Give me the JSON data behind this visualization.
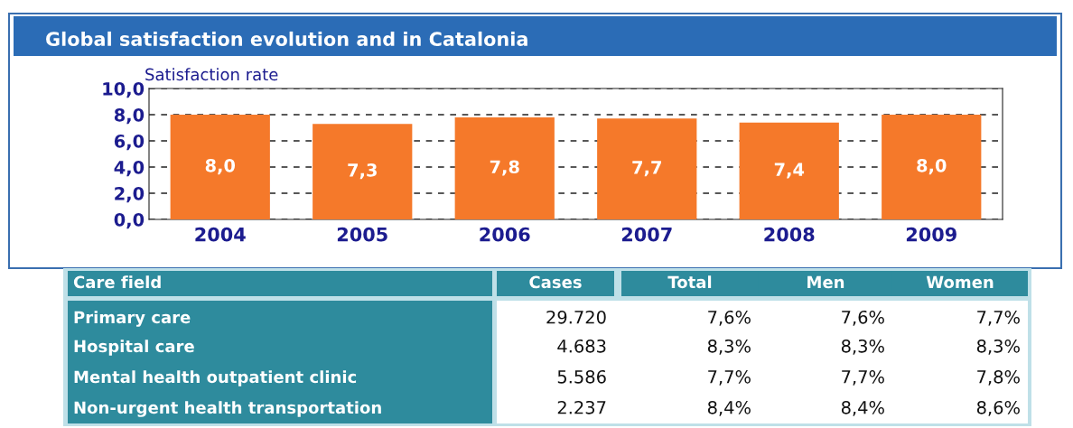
{
  "chart_data": [
    {
      "type": "bar",
      "title": "Global satisfaction evolution and in Catalonia",
      "ylabel": "Satisfaction rate",
      "categories": [
        "2004",
        "2005",
        "2006",
        "2007",
        "2008",
        "2009"
      ],
      "values": [
        8.0,
        7.3,
        7.8,
        7.7,
        7.4,
        8.0
      ],
      "value_labels": [
        "8,0",
        "7,3",
        "7,8",
        "7,7",
        "7,4",
        "8,0"
      ],
      "color": "#f5792a",
      "ylim": [
        0,
        10
      ],
      "yticks": [
        {
          "value": 0,
          "label": "0,0"
        },
        {
          "value": 2,
          "label": "2,0"
        },
        {
          "value": 4,
          "label": "4,0"
        },
        {
          "value": 6,
          "label": "6,0"
        },
        {
          "value": 8,
          "label": "8,0"
        },
        {
          "value": 10,
          "label": "10,0"
        }
      ],
      "grid": "y"
    },
    {
      "type": "other",
      "annotations": [
        "Care field",
        "Cases",
        "Total",
        "Men",
        "Women",
        "Primary care",
        "29.720",
        "7,6%",
        "7,6%",
        "7,7%",
        "Hospital care",
        "4.683",
        "8,3%",
        "8,3%",
        "8,3%",
        "Mental health outpatient clinic",
        "5.586",
        "7,7%",
        "7,7%",
        "7,8%",
        "Non-urgent health transportation",
        "2.237",
        "8,4%",
        "8,4%",
        "8,6%"
      ]
    }
  ]
}
